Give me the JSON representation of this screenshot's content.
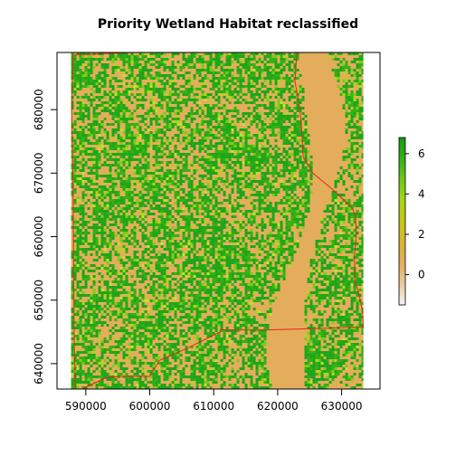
{
  "map": {
    "title": "Priority Wetland Habitat reclassified",
    "x_axis": {
      "ticks": [
        590000,
        600000,
        610000,
        620000,
        630000
      ],
      "range": [
        585500,
        636000
      ]
    },
    "y_axis": {
      "ticks": [
        640000,
        650000,
        660000,
        670000,
        680000
      ],
      "range": [
        636000,
        689000
      ]
    },
    "raster": {
      "extent_x": [
        587700,
        633400
      ],
      "extent_y": [
        636000,
        689000
      ],
      "background_color": "#e4ad5c",
      "class_colors": [
        "#e4ad5c",
        "#1ea51a",
        "#33b212",
        "#7dcc18",
        "#b3d61a",
        "#c8e02e"
      ]
    },
    "boundary": {
      "color": "#e8261c",
      "path": [
        [
          631500,
          689000
        ],
        [
          597000,
          689000
        ],
        [
          588000,
          688600
        ],
        [
          587800,
          680000
        ],
        [
          588000,
          669000
        ],
        [
          588100,
          655000
        ],
        [
          588200,
          643000
        ],
        [
          588400,
          636000
        ],
        [
          589500,
          636000
        ],
        [
          591500,
          637000
        ],
        [
          593000,
          637700
        ],
        [
          595000,
          638000
        ],
        [
          600000,
          638000
        ],
        [
          601500,
          640500
        ],
        [
          606000,
          642500
        ],
        [
          611000,
          645000
        ],
        [
          611000,
          645300
        ],
        [
          618000,
          645300
        ],
        [
          625000,
          645500
        ],
        [
          631000,
          645700
        ],
        [
          633400,
          645700
        ],
        [
          633300,
          648000
        ],
        [
          632700,
          651000
        ],
        [
          632100,
          653000
        ],
        [
          632000,
          657000
        ],
        [
          632300,
          660000
        ],
        [
          632200,
          663000
        ],
        [
          631700,
          664500
        ],
        [
          631200,
          665000
        ],
        [
          628500,
          667500
        ],
        [
          625500,
          670000
        ],
        [
          624000,
          672500
        ],
        [
          623800,
          676000
        ],
        [
          623500,
          680000
        ],
        [
          622700,
          684500
        ],
        [
          623000,
          689000
        ]
      ]
    },
    "legend": {
      "ticks": [
        0,
        2,
        4,
        6
      ],
      "range": [
        -1.5,
        6.8
      ],
      "colors": [
        "#f2f2f2",
        "#e8cba0",
        "#e4ad5c",
        "#d6b430",
        "#c6c814",
        "#a4d616",
        "#6cc81a",
        "#34b01a",
        "#149a14"
      ]
    }
  }
}
